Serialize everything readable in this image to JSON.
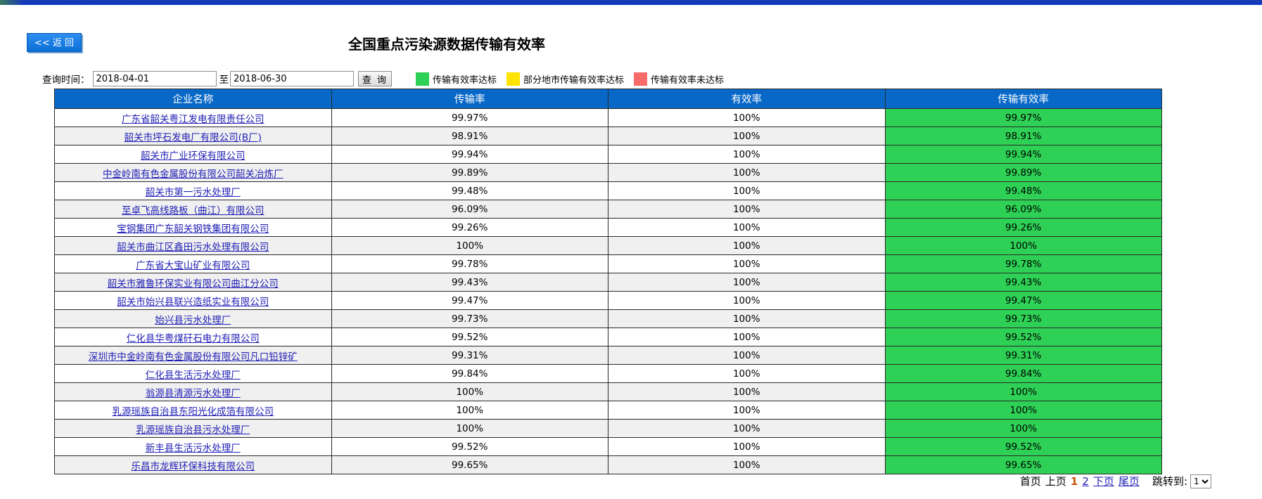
{
  "header": {
    "back_label": "<< 返 回",
    "title": "全国重点污染源数据传输有效率"
  },
  "query": {
    "label": "查询时间：",
    "start_date": "2018-04-01",
    "to_label": "至",
    "end_date": "2018-06-30",
    "button_label": "查 询"
  },
  "legend": [
    {
      "label": "传输有效率达标",
      "color": "#2ed155"
    },
    {
      "label": "部分地市传输有效率达标",
      "color": "#ffe400"
    },
    {
      "label": "传输有效率未达标",
      "color": "#f76b6b"
    }
  ],
  "table": {
    "columns": [
      "企业名称",
      "传输率",
      "有效率",
      "传输有效率"
    ],
    "rows": [
      {
        "name": "广东省韶关粤江发电有限责任公司",
        "transmission": "99.97%",
        "validity": "100%",
        "effective": "99.97%"
      },
      {
        "name": "韶关市坪石发电厂有限公司(B厂)",
        "transmission": "98.91%",
        "validity": "100%",
        "effective": "98.91%"
      },
      {
        "name": "韶关市广业环保有限公司",
        "transmission": "99.94%",
        "validity": "100%",
        "effective": "99.94%"
      },
      {
        "name": "中金岭南有色金属股份有限公司韶关冶炼厂",
        "transmission": "99.89%",
        "validity": "100%",
        "effective": "99.89%"
      },
      {
        "name": "韶关市第一污水处理厂",
        "transmission": "99.48%",
        "validity": "100%",
        "effective": "99.48%"
      },
      {
        "name": "至卓飞高线路板（曲江）有限公司",
        "transmission": "96.09%",
        "validity": "100%",
        "effective": "96.09%"
      },
      {
        "name": "宝钢集团广东韶关钢铁集团有限公司",
        "transmission": "99.26%",
        "validity": "100%",
        "effective": "99.26%"
      },
      {
        "name": "韶关市曲江区鑫田污水处理有限公司",
        "transmission": "100%",
        "validity": "100%",
        "effective": "100%"
      },
      {
        "name": "广东省大宝山矿业有限公司",
        "transmission": "99.78%",
        "validity": "100%",
        "effective": "99.78%"
      },
      {
        "name": "韶关市雅鲁环保实业有限公司曲江分公司",
        "transmission": "99.43%",
        "validity": "100%",
        "effective": "99.43%"
      },
      {
        "name": "韶关市始兴县联兴造纸实业有限公司",
        "transmission": "99.47%",
        "validity": "100%",
        "effective": "99.47%"
      },
      {
        "name": "始兴县污水处理厂",
        "transmission": "99.73%",
        "validity": "100%",
        "effective": "99.73%"
      },
      {
        "name": "仁化县华粤煤矸石电力有限公司",
        "transmission": "99.52%",
        "validity": "100%",
        "effective": "99.52%"
      },
      {
        "name": "深圳市中金岭南有色金属股份有限公司凡口铅锌矿",
        "transmission": "99.31%",
        "validity": "100%",
        "effective": "99.31%"
      },
      {
        "name": "仁化县生活污水处理厂",
        "transmission": "99.84%",
        "validity": "100%",
        "effective": "99.84%"
      },
      {
        "name": "翁源县清源污水处理厂",
        "transmission": "100%",
        "validity": "100%",
        "effective": "100%"
      },
      {
        "name": "乳源瑶族自治县东阳光化成箔有限公司",
        "transmission": "100%",
        "validity": "100%",
        "effective": "100%"
      },
      {
        "name": "乳源瑶族自治县污水处理厂",
        "transmission": "100%",
        "validity": "100%",
        "effective": "100%"
      },
      {
        "name": "新丰县生活污水处理厂",
        "transmission": "99.52%",
        "validity": "100%",
        "effective": "99.52%"
      },
      {
        "name": "乐昌市龙辉环保科技有限公司",
        "transmission": "99.65%",
        "validity": "100%",
        "effective": "99.65%"
      }
    ]
  },
  "pager": {
    "first": "首页",
    "prev": "上页",
    "current": "1",
    "page2": "2",
    "next": "下页",
    "last": "尾页",
    "jump_label": "跳转到:",
    "jump_value": "1"
  }
}
